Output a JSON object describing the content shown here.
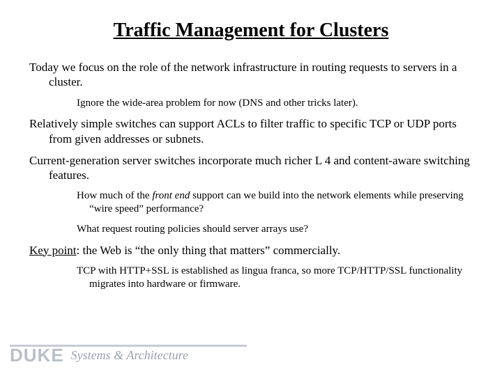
{
  "title": "Traffic Management for Clusters",
  "body": {
    "p1": "Today we focus on the role of the network infrastructure in routing requests to servers in a cluster.",
    "s1": "Ignore the wide-area problem for now (DNS and other tricks later).",
    "p2": "Relatively simple switches can support ACLs to filter traffic to specific TCP or UDP ports from given addresses or subnets.",
    "p3": "Current-generation server switches incorporate much richer L 4 and content-aware switching features.",
    "s2a": "How much of the ",
    "s2b": "front end",
    "s2c": " support can we build into the network elements while preserving “wire speed” performance?",
    "s3": "What request routing policies should server arrays use?",
    "p4a": "Key point",
    "p4b": ": the Web is “the only thing that matters” commercially.",
    "s4": "TCP with HTTP+SSL is established as lingua franca, so more TCP/HTTP/SSL functionality migrates into hardware or firmware."
  },
  "footer": {
    "duke": "DUKE",
    "sysarch": "Systems & Architecture"
  },
  "colors": {
    "text": "#000000",
    "background": "#ffffff",
    "footer_gray": "#b9bfc9",
    "footer_gray2": "#9aa0ae",
    "footer_line": "#c8cbd4"
  },
  "fonts": {
    "body": "Times New Roman",
    "title_size": 28,
    "para_size": 17,
    "sub_size": 15,
    "duke_size": 26,
    "sysarch_size": 18
  }
}
